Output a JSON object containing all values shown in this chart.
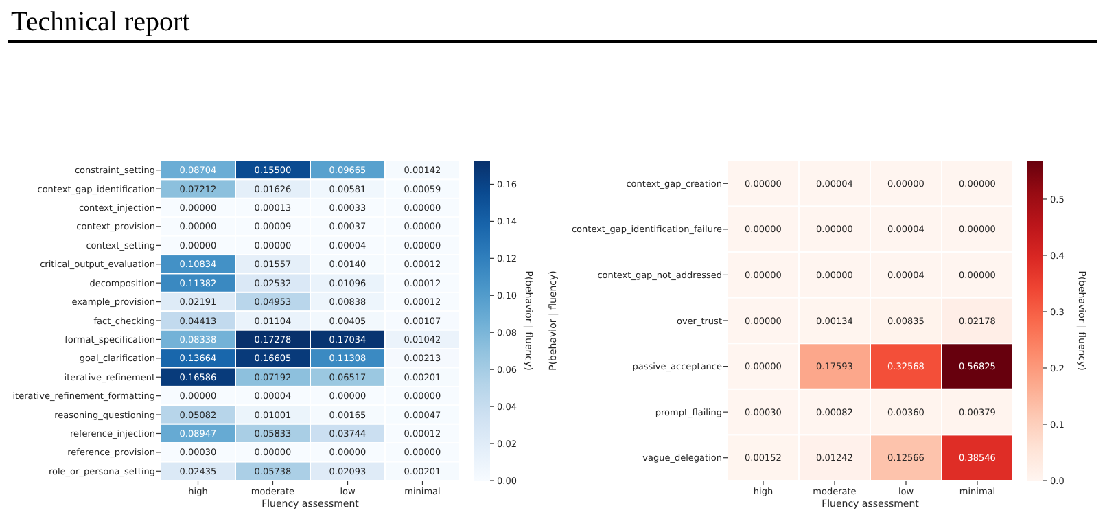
{
  "chart_data": [
    {
      "type": "heatmap",
      "title": "Technical report",
      "xlabel": "Fluency assessment",
      "clabel": "P(behavior | fluency)",
      "categories": [
        "high",
        "moderate",
        "low",
        "minimal"
      ],
      "y_categories": [
        "constraint_setting",
        "context_gap_identification",
        "context_injection",
        "context_provision",
        "context_setting",
        "critical_output_evaluation",
        "decomposition",
        "example_provision",
        "fact_checking",
        "format_specification",
        "goal_clarification",
        "iterative_refinement",
        "iterative_refinement_formatting",
        "reasoning_questioning",
        "reference_injection",
        "reference_provision",
        "role_or_persona_setting"
      ],
      "cells": [
        [
          0.08704,
          0.155,
          0.09665,
          0.00142
        ],
        [
          0.07212,
          0.01626,
          0.00581,
          0.00059
        ],
        [
          0,
          0.00013,
          0.00033,
          0
        ],
        [
          0,
          9e-05,
          0.00037,
          0
        ],
        [
          0,
          0,
          4e-05,
          0
        ],
        [
          0.10834,
          0.01557,
          0.0014,
          0.00012
        ],
        [
          0.11382,
          0.02532,
          0.01096,
          0.00012
        ],
        [
          0.02191,
          0.04953,
          0.00838,
          0.00012
        ],
        [
          0.04413,
          0.01104,
          0.00405,
          0.00107
        ],
        [
          0.08338,
          0.17278,
          0.17034,
          0.01042
        ],
        [
          0.13664,
          0.16605,
          0.11308,
          0.00213
        ],
        [
          0.16586,
          0.07192,
          0.06517,
          0.00201
        ],
        [
          0,
          4e-05,
          0,
          0
        ],
        [
          0.05082,
          0.01001,
          0.00165,
          0.00047
        ],
        [
          0.08947,
          0.05833,
          0.03744,
          0.00012
        ],
        [
          0.0003,
          0,
          0,
          0
        ],
        [
          0.02435,
          0.05738,
          0.02093,
          0.00201
        ]
      ],
      "cell_labels": [
        [
          "0.08704",
          "0.15500",
          "0.09665",
          "0.00142"
        ],
        [
          "0.07212",
          "0.01626",
          "0.00581",
          "0.00059"
        ],
        [
          "0.00000",
          "0.00013",
          "0.00033",
          "0.00000"
        ],
        [
          "0.00000",
          "0.00009",
          "0.00037",
          "0.00000"
        ],
        [
          "0.00000",
          "0.00000",
          "0.00004",
          "0.00000"
        ],
        [
          "0.10834",
          "0.01557",
          "0.00140",
          "0.00012"
        ],
        [
          "0.11382",
          "0.02532",
          "0.01096",
          "0.00012"
        ],
        [
          "0.02191",
          "0.04953",
          "0.00838",
          "0.00012"
        ],
        [
          "0.04413",
          "0.01104",
          "0.00405",
          "0.00107"
        ],
        [
          "0.08338",
          "0.17278",
          "0.17034",
          "0.01042"
        ],
        [
          "0.13664",
          "0.16605",
          "0.11308",
          "0.00213"
        ],
        [
          "0.16586",
          "0.07192",
          "0.06517",
          "0.00201"
        ],
        [
          "0.00000",
          "0.00004",
          "0.00000",
          "0.00000"
        ],
        [
          "0.05082",
          "0.01001",
          "0.00165",
          "0.00047"
        ],
        [
          "0.08947",
          "0.05833",
          "0.03744",
          "0.00012"
        ],
        [
          "0.00030",
          "0.00000",
          "0.00000",
          "0.00000"
        ],
        [
          "0.02435",
          "0.05738",
          "0.02093",
          "0.00201"
        ]
      ],
      "clim": [
        0,
        0.17278
      ],
      "cticks": [
        {
          "value": 0,
          "label": "0.00"
        },
        {
          "value": 0.02,
          "label": "0.02"
        },
        {
          "value": 0.04,
          "label": "0.04"
        },
        {
          "value": 0.06,
          "label": "0.06"
        },
        {
          "value": 0.08,
          "label": "0.08"
        },
        {
          "value": 0.1,
          "label": "0.10"
        },
        {
          "value": 0.12,
          "label": "0.12"
        },
        {
          "value": 0.14,
          "label": "0.14"
        },
        {
          "value": 0.16,
          "label": "0.16"
        }
      ]
    },
    {
      "type": "heatmap",
      "xlabel": "Fluency assessment",
      "ylabel": "P(behavior | fluency)",
      "clabel": "P(behavior | fluency)",
      "categories": [
        "high",
        "moderate",
        "low",
        "minimal"
      ],
      "y_categories": [
        "context_gap_creation",
        "context_gap_identification_failure",
        "context_gap_not_addressed",
        "over_trust",
        "passive_acceptance",
        "prompt_flailing",
        "vague_delegation"
      ],
      "cells": [
        [
          0,
          4e-05,
          0,
          0
        ],
        [
          0,
          0,
          4e-05,
          0
        ],
        [
          0,
          0,
          4e-05,
          0
        ],
        [
          0,
          0.00134,
          0.00835,
          0.02178
        ],
        [
          0,
          0.17593,
          0.32568,
          0.56825
        ],
        [
          0.0003,
          0.00082,
          0.0036,
          0.00379
        ],
        [
          0.00152,
          0.01242,
          0.12566,
          0.38546
        ]
      ],
      "cell_labels": [
        [
          "0.00000",
          "0.00004",
          "0.00000",
          "0.00000"
        ],
        [
          "0.00000",
          "0.00000",
          "0.00004",
          "0.00000"
        ],
        [
          "0.00000",
          "0.00000",
          "0.00004",
          "0.00000"
        ],
        [
          "0.00000",
          "0.00134",
          "0.00835",
          "0.02178"
        ],
        [
          "0.00000",
          "0.17593",
          "0.32568",
          "0.56825"
        ],
        [
          "0.00030",
          "0.00082",
          "0.00360",
          "0.00379"
        ],
        [
          "0.00152",
          "0.01242",
          "0.12566",
          "0.38546"
        ]
      ],
      "clim": [
        0,
        0.56825
      ],
      "cticks": [
        {
          "value": 0,
          "label": "0.0"
        },
        {
          "value": 0.1,
          "label": "0.1"
        },
        {
          "value": 0.2,
          "label": "0.2"
        },
        {
          "value": 0.3,
          "label": "0.3"
        },
        {
          "value": 0.4,
          "label": "0.4"
        },
        {
          "value": 0.5,
          "label": "0.5"
        }
      ]
    }
  ]
}
